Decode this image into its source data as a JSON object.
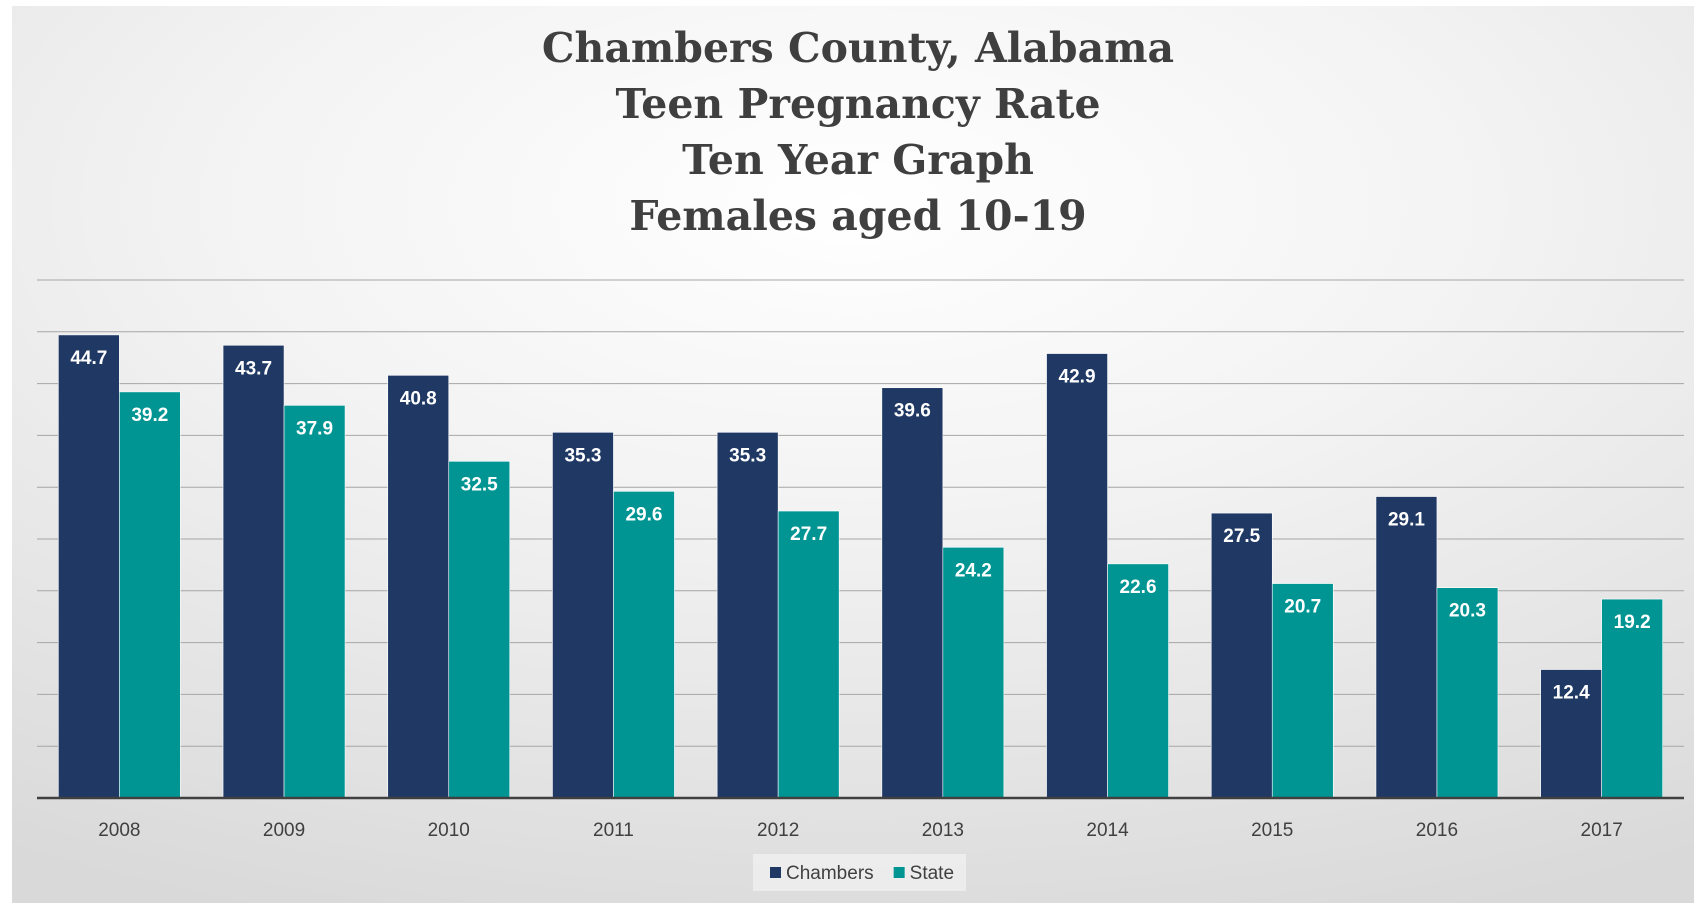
{
  "chart_data": {
    "type": "bar",
    "title_lines": [
      "Chambers County, Alabama",
      "Teen Pregnancy Rate",
      "Ten Year Graph",
      "Females aged 10-19"
    ],
    "categories": [
      "2008",
      "2009",
      "2010",
      "2011",
      "2012",
      "2013",
      "2014",
      "2015",
      "2016",
      "2017"
    ],
    "series": [
      {
        "name": "Chambers",
        "color": "#1f3864",
        "values": [
          44.7,
          43.7,
          40.8,
          35.3,
          35.3,
          39.6,
          42.9,
          27.5,
          29.1,
          12.4
        ]
      },
      {
        "name": "State",
        "color": "#009593",
        "values": [
          39.2,
          37.9,
          32.5,
          29.6,
          27.7,
          24.2,
          22.6,
          20.7,
          20.3,
          19.2
        ]
      }
    ],
    "ylim": [
      0,
      50
    ],
    "y_tick_step": 5,
    "y_tick_labels_visible": false,
    "grid": true,
    "legend_position": "bottom",
    "data_labels": true,
    "colors": {
      "gridline": "#a6a6a6",
      "axis": "#404040",
      "label": "#ffffff"
    }
  }
}
